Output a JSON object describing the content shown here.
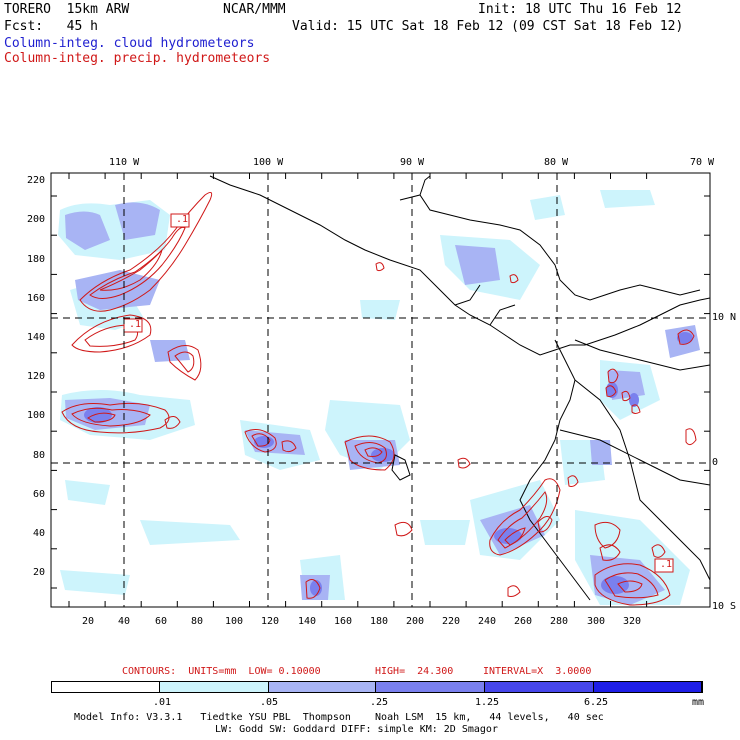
{
  "header": {
    "model": "TORERO  15km ARW",
    "org": "NCAR/MMM",
    "init": "Init: 18 UTC Thu 16 Feb 12",
    "fcst": "Fcst:   45 h",
    "valid": "Valid: 15 UTC Sat 18 Feb 12 (09 CST Sat 18 Feb 12)",
    "field1": "Column-integ. cloud hydrometeors",
    "field2": "Column-integ. precip. hydrometeors"
  },
  "map": {
    "lon_labels": [
      "110 W",
      "100 W",
      "90 W",
      "80 W",
      "70 W"
    ],
    "lat_labels": [
      "10 N",
      "0",
      "10 S"
    ],
    "x_ticks": [
      "20",
      "40",
      "60",
      "80",
      "100",
      "120",
      "140",
      "160",
      "180",
      "200",
      "220",
      "240",
      "260",
      "280",
      "300",
      "320"
    ],
    "y_ticks": [
      "220",
      "200",
      "180",
      "160",
      "140",
      "120",
      "100",
      "80",
      "60",
      "40",
      "20"
    ],
    "contour_labels": [
      ".1",
      ".1",
      ".1"
    ]
  },
  "contours_info": {
    "units": "CONTOURS:  UNITS=mm  LOW= 0.10000",
    "high": "HIGH=  24.300",
    "interval": "INTERVAL=X  3.0000"
  },
  "legend": {
    "labels": [
      ".01",
      ".05",
      ".25",
      "1.25",
      "6.25"
    ],
    "unit": "mm",
    "colors": [
      "#ffffff",
      "#cdf4fc",
      "#a8b4f4",
      "#7a80ee",
      "#4646ea",
      "#1e1ee6"
    ]
  },
  "footer": {
    "line1": "Model Info: V3.3.1   Tiedtke YSU PBL  Thompson    Noah LSM  15 km,   44 levels,   40 sec",
    "line2": "LW: Godd SW: Goddard DIFF: simple KM: 2D Smagor"
  },
  "colors": {
    "cloud_light": "#cdf4fc",
    "cloud_mid": "#a8b4f4",
    "cloud_dark": "#7a80ee",
    "precip": "#d01818"
  }
}
